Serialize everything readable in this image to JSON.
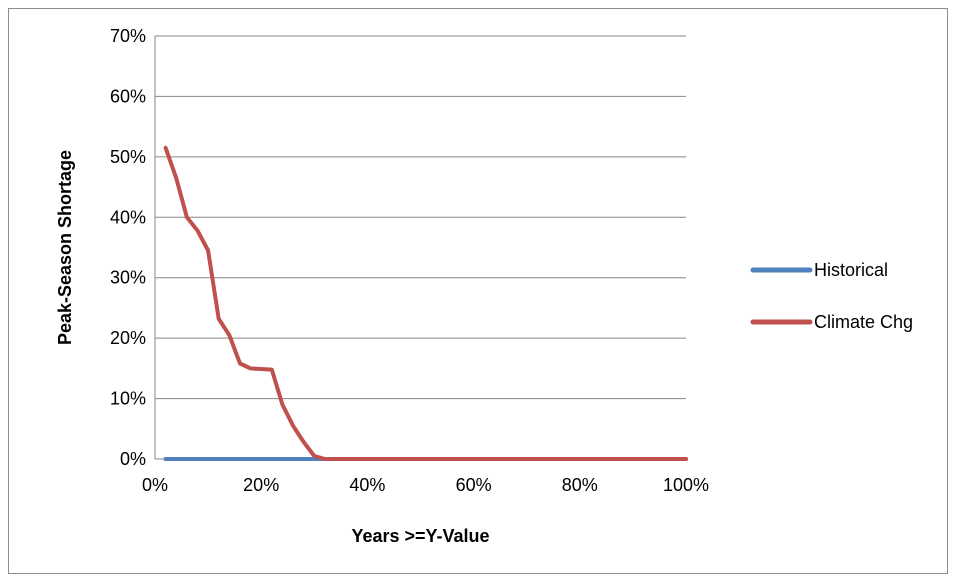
{
  "chart_data": {
    "type": "line",
    "title": "",
    "xlabel": "Years >=Y-Value",
    "ylabel": "Peak-Season Shortage",
    "xlim": [
      0,
      100
    ],
    "ylim": [
      0,
      70
    ],
    "x_ticks": [
      "0%",
      "20%",
      "40%",
      "60%",
      "80%",
      "100%"
    ],
    "y_ticks": [
      "0%",
      "10%",
      "20%",
      "30%",
      "40%",
      "50%",
      "60%",
      "70%"
    ],
    "grid": "horizontal",
    "legend_position": "right",
    "series": [
      {
        "name": "Historical",
        "color": "#4f81bd",
        "x": [
          2,
          100
        ],
        "y": [
          0,
          0
        ]
      },
      {
        "name": "Climate Chg",
        "color": "#c0504d",
        "x": [
          2,
          4,
          6,
          8,
          10,
          12,
          14,
          16,
          18,
          20,
          22,
          24,
          26,
          28,
          30,
          32,
          100
        ],
        "y": [
          51.5,
          46.5,
          40,
          37.8,
          34.5,
          23.2,
          20.5,
          15.8,
          15,
          14.9,
          14.8,
          9,
          5.5,
          2.8,
          0.5,
          0,
          0
        ]
      }
    ]
  }
}
